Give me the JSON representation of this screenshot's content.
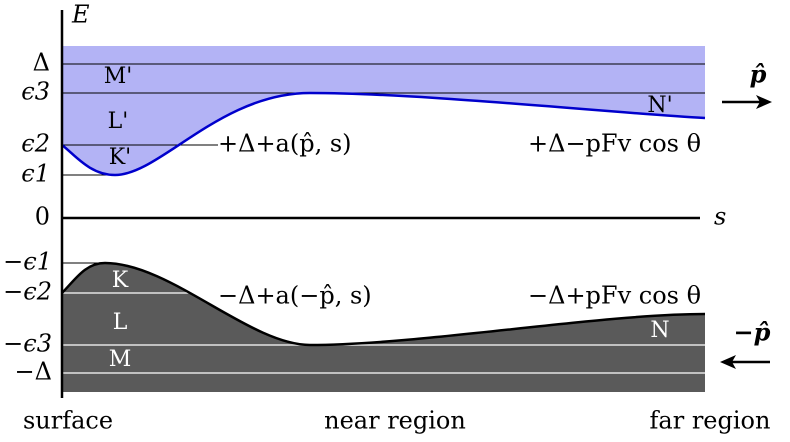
{
  "axes": {
    "y_label": "E",
    "x_label": "s"
  },
  "upper_levels": [
    "Δ",
    "ϵ3",
    "ϵ2",
    "ϵ1"
  ],
  "zero": "0",
  "lower_levels": [
    "−ϵ1",
    "−ϵ2",
    "−ϵ3",
    "−Δ"
  ],
  "upper_regions": [
    "M'",
    "L'",
    "K'",
    "N'"
  ],
  "lower_regions": [
    "K",
    "L",
    "M",
    "N"
  ],
  "expressions": {
    "upper_near": "+Δ+a(p̂, s)",
    "upper_far": "+Δ−pFv cos θ",
    "lower_near": "−Δ+a(−p̂, s)",
    "lower_far": "−Δ+pFv cos θ"
  },
  "arrows": {
    "right": "p̂",
    "left": "−p̂"
  },
  "bottom_labels": [
    "surface",
    "near region",
    "far region"
  ]
}
